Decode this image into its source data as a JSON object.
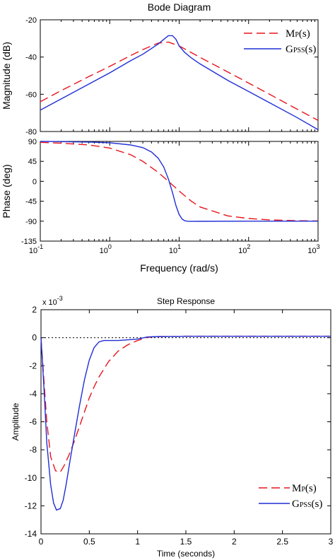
{
  "chart_data": [
    {
      "type": "line",
      "title": "Bode Diagram",
      "xlabel": "Frequency  (rad/s)",
      "x_scale": "log",
      "xlim": [
        0.1,
        1000
      ],
      "x_ticks": [
        0.1,
        1,
        10,
        100,
        1000
      ],
      "x_tick_labels": [
        {
          "base": "10",
          "exp": "-1"
        },
        {
          "base": "10",
          "exp": "0"
        },
        {
          "base": "10",
          "exp": "1"
        },
        {
          "base": "10",
          "exp": "2"
        },
        {
          "base": "10",
          "exp": "3"
        }
      ],
      "legend_position": "top-right",
      "legend": [
        {
          "main": "M",
          "sub": "P",
          "tail": "(s)",
          "color": "#e8141c",
          "style": "dashed"
        },
        {
          "main": "G",
          "sub": "PSS",
          "tail": "(s)",
          "color": "#1f2ed6",
          "style": "solid"
        }
      ],
      "panels": [
        {
          "name": "magnitude",
          "ylabel": "Magnitude (dB)",
          "ylim": [
            -80,
            -20
          ],
          "y_ticks": [
            -80,
            -60,
            -40,
            -20
          ],
          "y_tick_labels": [
            "-80",
            "-60",
            "-40",
            "-20"
          ],
          "series": [
            {
              "name": "Mp(s)",
              "color": "#e8141c",
              "style": "dashed",
              "x": [
                0.1,
                0.2,
                0.5,
                1,
                2,
                3,
                5,
                7,
                10,
                20,
                50,
                100,
                200,
                500,
                1000
              ],
              "y": [
                -64,
                -58,
                -50.5,
                -45,
                -39.2,
                -36,
                -32.5,
                -32,
                -34,
                -40.2,
                -48,
                -54,
                -60,
                -68,
                -74
              ]
            },
            {
              "name": "Gpss(s)",
              "color": "#1f2ed6",
              "style": "solid",
              "x": [
                0.1,
                0.2,
                0.5,
                1,
                2,
                3,
                5,
                6,
                7,
                8,
                9,
                10,
                12,
                15,
                20,
                50,
                100,
                200,
                500,
                1000
              ],
              "y": [
                -68.5,
                -62.5,
                -54.5,
                -48.5,
                -42,
                -38.5,
                -33,
                -30.5,
                -28.5,
                -28.5,
                -30.5,
                -34,
                -37.5,
                -40.5,
                -43.7,
                -52.5,
                -58.5,
                -64.5,
                -72.5,
                -79
              ]
            }
          ]
        },
        {
          "name": "phase",
          "ylabel": "Phase (deg)",
          "ylim": [
            -135,
            90
          ],
          "y_ticks": [
            -135,
            -90,
            -45,
            0,
            45,
            90
          ],
          "y_tick_labels": [
            "-135",
            "-90",
            "-45",
            "0",
            "45",
            "90"
          ],
          "series": [
            {
              "name": "Mp(s)",
              "color": "#e8141c",
              "style": "dashed",
              "x": [
                0.1,
                0.2,
                0.5,
                1,
                2,
                3,
                5,
                7,
                10,
                15,
                20,
                50,
                100,
                200,
                500,
                1000
              ],
              "y": [
                88,
                86,
                82,
                75,
                60,
                45,
                20,
                0,
                -22,
                -45,
                -58,
                -78,
                -84,
                -87,
                -89,
                -89.5
              ]
            },
            {
              "name": "Gpss(s)",
              "color": "#1f2ed6",
              "style": "solid",
              "x": [
                0.1,
                0.2,
                0.5,
                1,
                2,
                3,
                4,
                5,
                6,
                7,
                8,
                9,
                10,
                11,
                12,
                13,
                14,
                15,
                20,
                100,
                1000
              ],
              "y": [
                90,
                89.5,
                88.5,
                87,
                82,
                76,
                66,
                52,
                32,
                5,
                -25,
                -55,
                -75,
                -85,
                -89,
                -90,
                -90.5,
                -90.5,
                -90.3,
                -90,
                -90
              ]
            }
          ]
        }
      ]
    },
    {
      "type": "line",
      "title": "Step Response",
      "xlabel": "Time (seconds)",
      "ylabel": "Amplitude",
      "y_multiplier": "x 10",
      "y_multiplier_exp": "-3",
      "xlim": [
        0,
        3
      ],
      "ylim": [
        -14,
        2
      ],
      "x_ticks": [
        0,
        0.5,
        1,
        1.5,
        2,
        2.5,
        3
      ],
      "x_tick_labels": [
        "0",
        "0.5",
        "1",
        "1.5",
        "2",
        "2.5",
        "3"
      ],
      "y_ticks": [
        -14,
        -12,
        -10,
        -8,
        -6,
        -4,
        -2,
        0,
        2
      ],
      "y_tick_labels": [
        "-14",
        "-12",
        "-10",
        "-8",
        "-6",
        "-4",
        "-2",
        "0",
        "2"
      ],
      "reference_line": {
        "y": 0,
        "color": "#000000",
        "style": "dotted"
      },
      "legend_position": "bottom-right",
      "legend": [
        {
          "main": "M",
          "sub": "P",
          "tail": "(s)",
          "color": "#e8141c",
          "style": "dashed"
        },
        {
          "main": "G",
          "sub": "PSS",
          "tail": "(s)",
          "color": "#1f2ed6",
          "style": "solid"
        }
      ],
      "series": [
        {
          "name": "Mp(s)",
          "color": "#e8141c",
          "style": "dashed",
          "x": [
            0,
            0.03,
            0.06,
            0.1,
            0.15,
            0.2,
            0.25,
            0.3,
            0.35,
            0.4,
            0.45,
            0.5,
            0.55,
            0.6,
            0.7,
            0.8,
            0.9,
            1.0,
            1.1,
            1.2,
            1.5,
            2.0,
            2.5,
            3.0
          ],
          "y": [
            0,
            -3.0,
            -6.0,
            -8.5,
            -9.5,
            -9.6,
            -9.0,
            -8.2,
            -7.3,
            -6.3,
            -5.3,
            -4.3,
            -3.5,
            -2.8,
            -1.7,
            -0.95,
            -0.5,
            -0.2,
            0.02,
            0.08,
            0.1,
            0.1,
            0.1,
            0.1
          ]
        },
        {
          "name": "Gpss(s)",
          "color": "#1f2ed6",
          "style": "solid",
          "x": [
            0,
            0.03,
            0.06,
            0.1,
            0.13,
            0.16,
            0.2,
            0.23,
            0.26,
            0.3,
            0.35,
            0.4,
            0.45,
            0.5,
            0.55,
            0.6,
            0.65,
            0.7,
            0.8,
            0.9,
            1.0,
            1.1,
            1.2,
            1.5,
            2.0,
            2.5,
            3.0
          ],
          "y": [
            0,
            -3.5,
            -7.5,
            -10.5,
            -11.8,
            -12.3,
            -12.2,
            -11.6,
            -10.5,
            -8.8,
            -6.8,
            -4.8,
            -3.0,
            -1.6,
            -0.7,
            -0.3,
            -0.2,
            -0.2,
            -0.2,
            -0.15,
            -0.1,
            0.05,
            0.08,
            0.1,
            0.1,
            0.1,
            0.1
          ]
        }
      ]
    }
  ]
}
